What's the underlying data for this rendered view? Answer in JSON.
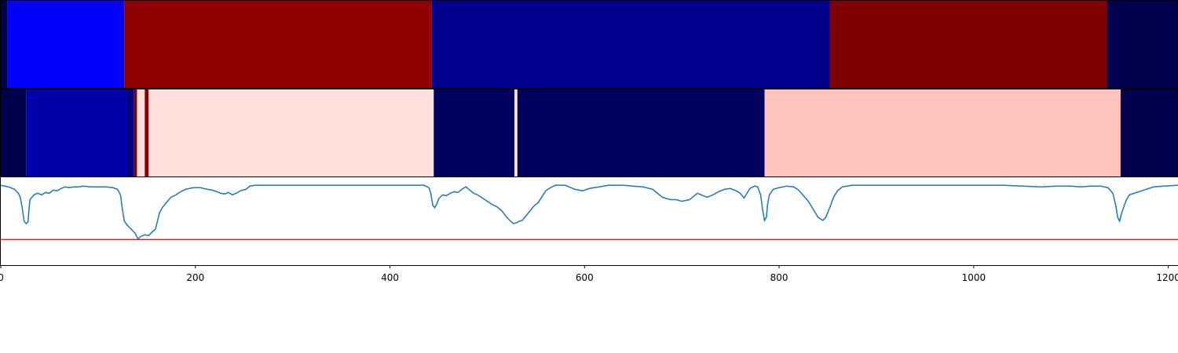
{
  "chart_data": {
    "type": "heatmap",
    "xlim": [
      0,
      1210
    ],
    "x_ticks": [
      {
        "value": 0,
        "label": "0"
      },
      {
        "value": 200,
        "label": "200"
      },
      {
        "value": 400,
        "label": "400"
      },
      {
        "value": 600,
        "label": "600"
      },
      {
        "value": 800,
        "label": "800"
      },
      {
        "value": 1000,
        "label": "1000"
      },
      {
        "value": 1200,
        "label": "1200"
      }
    ],
    "segment_rows": [
      {
        "segments": [
          {
            "start": 0,
            "end": 7,
            "color": "#00004c"
          },
          {
            "start": 7,
            "end": 127,
            "color": "#0000ff"
          },
          {
            "start": 127,
            "end": 443,
            "color": "#900000"
          },
          {
            "start": 443,
            "end": 852,
            "color": "#00008c"
          },
          {
            "start": 852,
            "end": 1137,
            "color": "#800000"
          },
          {
            "start": 1137,
            "end": 1210,
            "color": "#00004c"
          }
        ]
      },
      {
        "segments": [
          {
            "start": 0,
            "end": 26,
            "color": "#00004c"
          },
          {
            "start": 26,
            "end": 130,
            "color": "#0000aa"
          },
          {
            "start": 130,
            "end": 137,
            "color": "#000080"
          },
          {
            "start": 137,
            "end": 140,
            "color": "#800000"
          },
          {
            "start": 140,
            "end": 148,
            "color": "#ffdfdc"
          },
          {
            "start": 148,
            "end": 152,
            "color": "#800000"
          },
          {
            "start": 152,
            "end": 445,
            "color": "#ffdfdc"
          },
          {
            "start": 445,
            "end": 528,
            "color": "#00005e"
          },
          {
            "start": 528,
            "end": 531,
            "color": "#ffdfdc"
          },
          {
            "start": 531,
            "end": 785,
            "color": "#00005e"
          },
          {
            "start": 785,
            "end": 1151,
            "color": "#ffc4c0"
          },
          {
            "start": 1151,
            "end": 1210,
            "color": "#00004c"
          }
        ]
      }
    ],
    "line": {
      "color": "#1f77b4",
      "ylim": [
        0,
        1.1
      ],
      "points": [
        [
          0,
          1.0
        ],
        [
          8,
          0.98
        ],
        [
          14,
          0.95
        ],
        [
          18,
          0.9
        ],
        [
          20,
          0.85
        ],
        [
          22,
          0.72
        ],
        [
          24,
          0.55
        ],
        [
          26,
          0.52
        ],
        [
          28,
          0.54
        ],
        [
          29,
          0.7
        ],
        [
          30,
          0.82
        ],
        [
          34,
          0.88
        ],
        [
          38,
          0.9
        ],
        [
          42,
          0.88
        ],
        [
          46,
          0.91
        ],
        [
          50,
          0.9
        ],
        [
          54,
          0.94
        ],
        [
          58,
          0.93
        ],
        [
          62,
          0.96
        ],
        [
          66,
          0.98
        ],
        [
          70,
          0.97
        ],
        [
          75,
          0.98
        ],
        [
          80,
          0.98
        ],
        [
          85,
          0.99
        ],
        [
          92,
          0.98
        ],
        [
          100,
          0.98
        ],
        [
          108,
          0.98
        ],
        [
          115,
          0.97
        ],
        [
          120,
          0.95
        ],
        [
          123,
          0.88
        ],
        [
          125,
          0.7
        ],
        [
          127,
          0.55
        ],
        [
          130,
          0.5
        ],
        [
          134,
          0.45
        ],
        [
          138,
          0.4
        ],
        [
          141,
          0.33
        ],
        [
          144,
          0.36
        ],
        [
          148,
          0.38
        ],
        [
          152,
          0.37
        ],
        [
          156,
          0.42
        ],
        [
          159,
          0.45
        ],
        [
          161,
          0.55
        ],
        [
          163,
          0.65
        ],
        [
          166,
          0.72
        ],
        [
          170,
          0.78
        ],
        [
          175,
          0.85
        ],
        [
          180,
          0.88
        ],
        [
          185,
          0.92
        ],
        [
          190,
          0.95
        ],
        [
          198,
          0.97
        ],
        [
          205,
          0.97
        ],
        [
          212,
          0.95
        ],
        [
          217,
          0.94
        ],
        [
          222,
          0.92
        ],
        [
          226,
          0.9
        ],
        [
          230,
          0.89
        ],
        [
          234,
          0.91
        ],
        [
          238,
          0.88
        ],
        [
          242,
          0.9
        ],
        [
          246,
          0.93
        ],
        [
          252,
          0.95
        ],
        [
          256,
          0.99
        ],
        [
          262,
          1.0
        ],
        [
          275,
          1.0
        ],
        [
          300,
          1.0
        ],
        [
          350,
          1.0
        ],
        [
          400,
          1.0
        ],
        [
          435,
          1.0
        ],
        [
          440,
          0.97
        ],
        [
          442,
          0.9
        ],
        [
          444,
          0.75
        ],
        [
          446,
          0.72
        ],
        [
          448,
          0.76
        ],
        [
          450,
          0.83
        ],
        [
          454,
          0.88
        ],
        [
          458,
          0.87
        ],
        [
          462,
          0.9
        ],
        [
          466,
          0.92
        ],
        [
          470,
          0.91
        ],
        [
          474,
          0.95
        ],
        [
          478,
          0.98
        ],
        [
          482,
          0.94
        ],
        [
          486,
          0.9
        ],
        [
          490,
          0.88
        ],
        [
          494,
          0.85
        ],
        [
          500,
          0.8
        ],
        [
          505,
          0.76
        ],
        [
          510,
          0.73
        ],
        [
          515,
          0.68
        ],
        [
          520,
          0.6
        ],
        [
          524,
          0.55
        ],
        [
          527,
          0.52
        ],
        [
          530,
          0.53
        ],
        [
          533,
          0.55
        ],
        [
          536,
          0.56
        ],
        [
          540,
          0.62
        ],
        [
          544,
          0.68
        ],
        [
          548,
          0.74
        ],
        [
          552,
          0.78
        ],
        [
          556,
          0.85
        ],
        [
          560,
          0.93
        ],
        [
          565,
          0.97
        ],
        [
          570,
          1.0
        ],
        [
          580,
          1.0
        ],
        [
          590,
          0.95
        ],
        [
          598,
          0.93
        ],
        [
          605,
          0.96
        ],
        [
          615,
          0.98
        ],
        [
          625,
          1.0
        ],
        [
          640,
          1.0
        ],
        [
          650,
          0.99
        ],
        [
          660,
          0.98
        ],
        [
          670,
          0.95
        ],
        [
          675,
          0.9
        ],
        [
          680,
          0.85
        ],
        [
          688,
          0.82
        ],
        [
          694,
          0.82
        ],
        [
          700,
          0.8
        ],
        [
          708,
          0.82
        ],
        [
          712,
          0.86
        ],
        [
          716,
          0.9
        ],
        [
          720,
          0.88
        ],
        [
          726,
          0.85
        ],
        [
          732,
          0.88
        ],
        [
          738,
          0.92
        ],
        [
          744,
          0.95
        ],
        [
          750,
          0.96
        ],
        [
          756,
          0.93
        ],
        [
          760,
          0.9
        ],
        [
          762,
          0.87
        ],
        [
          764,
          0.84
        ],
        [
          766,
          0.88
        ],
        [
          770,
          0.96
        ],
        [
          775,
          0.99
        ],
        [
          778,
          0.98
        ],
        [
          781,
          0.88
        ],
        [
          783,
          0.7
        ],
        [
          785,
          0.56
        ],
        [
          787,
          0.6
        ],
        [
          788,
          0.75
        ],
        [
          790,
          0.88
        ],
        [
          794,
          0.95
        ],
        [
          800,
          0.97
        ],
        [
          808,
          0.99
        ],
        [
          815,
          0.98
        ],
        [
          820,
          0.94
        ],
        [
          825,
          0.87
        ],
        [
          830,
          0.8
        ],
        [
          835,
          0.7
        ],
        [
          840,
          0.6
        ],
        [
          845,
          0.56
        ],
        [
          848,
          0.6
        ],
        [
          852,
          0.72
        ],
        [
          856,
          0.85
        ],
        [
          860,
          0.93
        ],
        [
          865,
          0.98
        ],
        [
          875,
          1.0
        ],
        [
          900,
          1.0
        ],
        [
          950,
          1.0
        ],
        [
          1000,
          1.0
        ],
        [
          1030,
          1.0
        ],
        [
          1050,
          0.99
        ],
        [
          1070,
          0.98
        ],
        [
          1085,
          0.99
        ],
        [
          1100,
          0.99
        ],
        [
          1110,
          0.98
        ],
        [
          1120,
          0.99
        ],
        [
          1130,
          0.99
        ],
        [
          1138,
          0.97
        ],
        [
          1143,
          0.9
        ],
        [
          1146,
          0.75
        ],
        [
          1148,
          0.6
        ],
        [
          1150,
          0.55
        ],
        [
          1152,
          0.65
        ],
        [
          1154,
          0.72
        ],
        [
          1157,
          0.82
        ],
        [
          1160,
          0.88
        ],
        [
          1165,
          0.9
        ],
        [
          1170,
          0.92
        ],
        [
          1175,
          0.94
        ],
        [
          1180,
          0.96
        ],
        [
          1185,
          0.98
        ],
        [
          1195,
          0.99
        ],
        [
          1210,
          1.0
        ]
      ]
    },
    "threshold_line": {
      "y": 0.32,
      "color": "#dd2222"
    },
    "grid": false
  }
}
